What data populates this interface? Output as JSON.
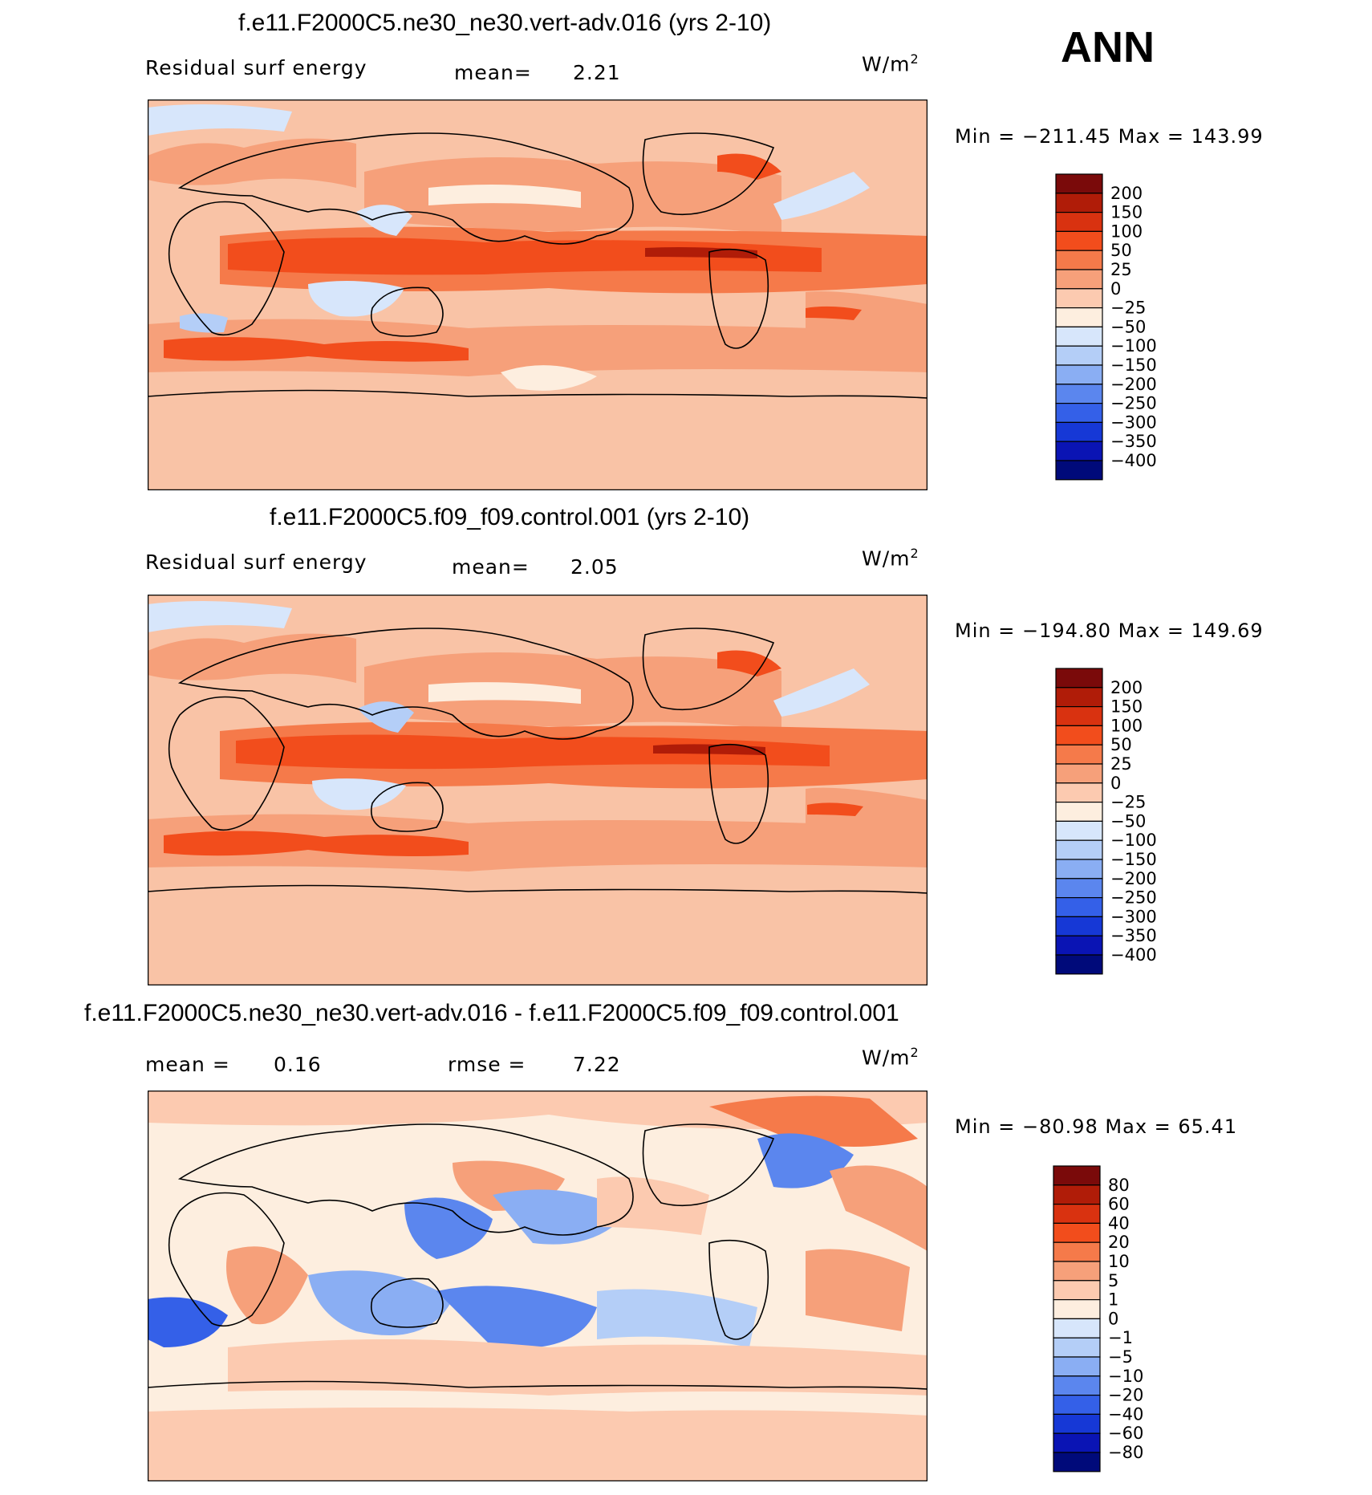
{
  "ann_label": "ANN",
  "chart_data": [
    {
      "type": "heatmap",
      "title": "f.e11.F2000C5.ne30_ne30.vert-adv.016 (yrs 2-10)",
      "left_label": "Residual surf energy",
      "stat1_label": "mean=",
      "stat1_value": "2.21",
      "units": "W/m",
      "units_exp": "2",
      "minmax_text": "Min = −211.45 Max = 143.99",
      "colorbar_levels": [
        "200",
        "150",
        "100",
        "50",
        "25",
        "0",
        "−25",
        "−50",
        "−100",
        "−150",
        "−200",
        "−250",
        "−300",
        "−350",
        "−400"
      ],
      "colorbar_colors": [
        "#7a0a0a",
        "#b01c08",
        "#d93210",
        "#f24d1c",
        "#f57a4a",
        "#f6a07a",
        "#fccab0",
        "#fdeedf",
        "#d7e6fb",
        "#b4cef7",
        "#8aaef3",
        "#5b86ee",
        "#3460e8",
        "#1638d6",
        "#0a14b4",
        "#000a7a"
      ],
      "min": -211.45,
      "max": 143.99
    },
    {
      "type": "heatmap",
      "title": "f.e11.F2000C5.f09_f09.control.001 (yrs 2-10)",
      "left_label": "Residual surf energy",
      "stat1_label": "mean=",
      "stat1_value": "2.05",
      "units": "W/m",
      "units_exp": "2",
      "minmax_text": "Min = −194.80 Max = 149.69",
      "colorbar_levels": [
        "200",
        "150",
        "100",
        "50",
        "25",
        "0",
        "−25",
        "−50",
        "−100",
        "−150",
        "−200",
        "−250",
        "−300",
        "−350",
        "−400"
      ],
      "colorbar_colors": [
        "#7a0a0a",
        "#b01c08",
        "#d93210",
        "#f24d1c",
        "#f57a4a",
        "#f6a07a",
        "#fccab0",
        "#fdeedf",
        "#d7e6fb",
        "#b4cef7",
        "#8aaef3",
        "#5b86ee",
        "#3460e8",
        "#1638d6",
        "#0a14b4",
        "#000a7a"
      ],
      "min": -194.8,
      "max": 149.69
    },
    {
      "type": "heatmap",
      "title": "f.e11.F2000C5.ne30_ne30.vert-adv.016 - f.e11.F2000C5.f09_f09.control.001",
      "left_label": "mean =",
      "left_value": "0.16",
      "stat1_label": "rmse =",
      "stat1_value": "7.22",
      "units": "W/m",
      "units_exp": "2",
      "minmax_text": "Min = −80.98 Max =  65.41",
      "colorbar_levels": [
        "80",
        "60",
        "40",
        "20",
        "10",
        "5",
        "1",
        "0",
        "−1",
        "−5",
        "−10",
        "−20",
        "−40",
        "−60",
        "−80"
      ],
      "colorbar_colors": [
        "#7a0a0a",
        "#b01c08",
        "#d93210",
        "#f24d1c",
        "#f57a4a",
        "#f6a07a",
        "#fccab0",
        "#fdeedf",
        "#d7e6fb",
        "#b4cef7",
        "#8aaef3",
        "#5b86ee",
        "#3460e8",
        "#1638d6",
        "#0a14b4",
        "#000a7a"
      ],
      "min": -80.98,
      "max": 65.41
    }
  ]
}
